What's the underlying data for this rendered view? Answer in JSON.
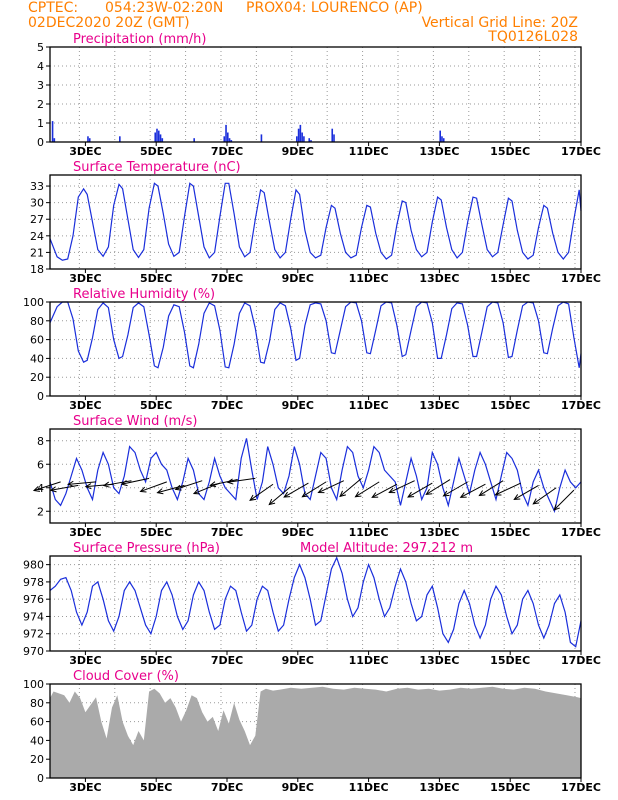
{
  "header": {
    "line1_left": "CPTEC:",
    "line1_coords": "054:23W-02:20N",
    "line1_station": "PROX04: LOURENCO (AP)",
    "line2_left": "02DEC2020 20Z (GMT)",
    "line2_right": "Vertical Grid Line: 20Z",
    "line3_right": "TQ0126L028"
  },
  "colors": {
    "header": "#ff7f00",
    "title": "#e8008c",
    "series": "#1a2edb",
    "cloud": "#aaaaaa",
    "grid": "#9a9a9a"
  },
  "x_axis": {
    "start_day": 2.0,
    "end_day": 17.0,
    "date_labels": [
      "3DEC",
      "5DEC",
      "7DEC",
      "9DEC",
      "11DEC",
      "13DEC",
      "15DEC",
      "17DEC"
    ],
    "label_days": [
      3,
      5,
      7,
      9,
      11,
      13,
      15,
      17
    ],
    "grid_hour": "20Z"
  },
  "chart_data": [
    {
      "id": "precip",
      "type": "bar",
      "title": "Precipitation (mm/h)",
      "ylim": [
        0,
        5
      ],
      "yticks": [
        0,
        1,
        2,
        3,
        4,
        5
      ],
      "grid": true,
      "day": [
        2.05,
        2.1,
        3.05,
        3.1,
        3.95,
        4.95,
        5.0,
        5.05,
        5.1,
        5.15,
        6.05,
        6.9,
        6.95,
        7.0,
        7.05,
        7.1,
        7.95,
        8.95,
        9.0,
        9.05,
        9.1,
        9.15,
        9.3,
        9.35,
        9.95,
        10.0,
        13.0,
        13.05,
        13.1
      ],
      "values": [
        1.1,
        0.2,
        0.3,
        0.2,
        0.3,
        0.5,
        0.7,
        0.6,
        0.4,
        0.2,
        0.2,
        0.3,
        0.9,
        0.5,
        0.2,
        0.1,
        0.4,
        0.3,
        0.7,
        0.9,
        0.5,
        0.3,
        0.2,
        0.1,
        0.7,
        0.4,
        0.6,
        0.3,
        0.2
      ]
    },
    {
      "id": "temp",
      "type": "line",
      "title": "Surface Temperature (nC)",
      "ylim": [
        18,
        35
      ],
      "yticks": [
        18,
        21,
        24,
        27,
        30,
        33
      ],
      "grid": true,
      "day": [
        2.0,
        2.2,
        2.35,
        2.5,
        2.65,
        2.8,
        2.95,
        3.05,
        3.2,
        3.35,
        3.5,
        3.65,
        3.8,
        3.95,
        4.05,
        4.2,
        4.35,
        4.5,
        4.65,
        4.8,
        4.95,
        5.05,
        5.2,
        5.35,
        5.5,
        5.65,
        5.8,
        5.95,
        6.05,
        6.2,
        6.35,
        6.5,
        6.65,
        6.8,
        6.95,
        7.05,
        7.2,
        7.35,
        7.5,
        7.65,
        7.8,
        7.95,
        8.05,
        8.2,
        8.35,
        8.5,
        8.65,
        8.8,
        8.95,
        9.05,
        9.2,
        9.35,
        9.5,
        9.65,
        9.8,
        9.95,
        10.05,
        10.2,
        10.35,
        10.5,
        10.65,
        10.8,
        10.95,
        11.05,
        11.2,
        11.35,
        11.5,
        11.65,
        11.8,
        11.95,
        12.05,
        12.2,
        12.35,
        12.5,
        12.65,
        12.8,
        12.95,
        13.05,
        13.2,
        13.35,
        13.5,
        13.65,
        13.8,
        13.95,
        14.05,
        14.2,
        14.35,
        14.5,
        14.65,
        14.8,
        14.95,
        15.05,
        15.2,
        15.35,
        15.5,
        15.65,
        15.8,
        15.95,
        16.05,
        16.2,
        16.35,
        16.5,
        16.65,
        16.8,
        16.95,
        17.0
      ],
      "values": [
        23.5,
        20.2,
        19.6,
        19.8,
        24.0,
        31.0,
        32.5,
        31.5,
        26.5,
        21.5,
        20.3,
        22.0,
        29.5,
        33.3,
        32.5,
        27.0,
        21.5,
        20.1,
        21.5,
        29.0,
        33.5,
        33.0,
        28.0,
        22.5,
        20.3,
        21.0,
        27.5,
        33.5,
        33.0,
        27.5,
        22.0,
        20.0,
        21.0,
        27.5,
        33.5,
        33.5,
        28.0,
        22.0,
        20.2,
        21.0,
        27.0,
        32.3,
        31.8,
        26.5,
        21.5,
        20.0,
        21.0,
        27.0,
        32.3,
        31.5,
        25.0,
        21.0,
        20.0,
        20.5,
        25.5,
        29.5,
        29.0,
        24.5,
        21.0,
        20.0,
        20.5,
        25.5,
        29.5,
        29.2,
        24.5,
        21.0,
        19.8,
        20.5,
        26.0,
        30.3,
        30.0,
        25.0,
        21.5,
        20.2,
        21.0,
        26.5,
        31.0,
        30.5,
        25.5,
        21.5,
        20.0,
        21.0,
        26.5,
        31.0,
        30.8,
        26.0,
        21.5,
        20.2,
        21.0,
        26.0,
        30.8,
        30.3,
        25.0,
        21.0,
        19.8,
        20.5,
        25.5,
        29.5,
        29.0,
        24.5,
        21.0,
        19.8,
        21.0,
        27.0,
        32.3,
        28.5
      ]
    },
    {
      "id": "rh",
      "type": "line",
      "title": "Relative Humidity (%)",
      "ylim": [
        0,
        100
      ],
      "yticks": [
        0,
        20,
        40,
        60,
        80,
        100
      ],
      "grid": true,
      "day": [
        2.0,
        2.2,
        2.35,
        2.5,
        2.65,
        2.8,
        2.95,
        3.05,
        3.2,
        3.35,
        3.5,
        3.65,
        3.8,
        3.95,
        4.05,
        4.2,
        4.35,
        4.5,
        4.65,
        4.8,
        4.95,
        5.05,
        5.2,
        5.35,
        5.5,
        5.65,
        5.8,
        5.95,
        6.05,
        6.2,
        6.35,
        6.5,
        6.65,
        6.8,
        6.95,
        7.05,
        7.2,
        7.35,
        7.5,
        7.65,
        7.8,
        7.95,
        8.05,
        8.2,
        8.35,
        8.5,
        8.65,
        8.8,
        8.95,
        9.05,
        9.2,
        9.35,
        9.5,
        9.65,
        9.8,
        9.95,
        10.05,
        10.2,
        10.35,
        10.5,
        10.65,
        10.8,
        10.95,
        11.05,
        11.2,
        11.35,
        11.5,
        11.65,
        11.8,
        11.95,
        12.05,
        12.2,
        12.35,
        12.5,
        12.65,
        12.8,
        12.95,
        13.05,
        13.2,
        13.35,
        13.5,
        13.65,
        13.8,
        13.95,
        14.05,
        14.2,
        14.35,
        14.5,
        14.65,
        14.8,
        14.95,
        15.05,
        15.2,
        15.35,
        15.5,
        15.65,
        15.8,
        15.95,
        16.05,
        16.2,
        16.35,
        16.5,
        16.65,
        16.8,
        16.95,
        17.0
      ],
      "values": [
        78,
        95,
        100,
        100,
        82,
        48,
        36,
        38,
        62,
        92,
        99,
        94,
        60,
        40,
        42,
        65,
        94,
        99,
        95,
        65,
        32,
        30,
        52,
        85,
        97,
        95,
        68,
        32,
        30,
        55,
        88,
        99,
        96,
        70,
        31,
        30,
        55,
        88,
        99,
        96,
        72,
        36,
        35,
        58,
        92,
        99,
        96,
        72,
        38,
        40,
        75,
        97,
        99,
        98,
        80,
        46,
        45,
        70,
        95,
        100,
        99,
        80,
        46,
        45,
        70,
        96,
        100,
        99,
        75,
        42,
        44,
        70,
        95,
        100,
        99,
        78,
        40,
        40,
        65,
        93,
        99,
        98,
        75,
        42,
        42,
        68,
        95,
        100,
        99,
        78,
        41,
        42,
        70,
        96,
        100,
        99,
        80,
        46,
        45,
        72,
        96,
        100,
        98,
        62,
        30,
        45
      ]
    },
    {
      "id": "wind",
      "type": "line",
      "title": "Surface Wind (m/s)",
      "ylim": [
        1,
        9
      ],
      "yticks": [
        2,
        4,
        6,
        8
      ],
      "grid": true,
      "day": [
        2.0,
        2.15,
        2.3,
        2.45,
        2.6,
        2.75,
        2.9,
        3.05,
        3.2,
        3.35,
        3.5,
        3.65,
        3.8,
        3.95,
        4.1,
        4.25,
        4.4,
        4.55,
        4.7,
        4.85,
        5.0,
        5.15,
        5.3,
        5.45,
        5.6,
        5.75,
        5.9,
        6.05,
        6.2,
        6.35,
        6.5,
        6.65,
        6.8,
        6.95,
        7.1,
        7.25,
        7.4,
        7.55,
        7.7,
        7.85,
        8.0,
        8.15,
        8.3,
        8.45,
        8.6,
        8.75,
        8.9,
        9.05,
        9.2,
        9.35,
        9.5,
        9.65,
        9.8,
        9.95,
        10.1,
        10.25,
        10.4,
        10.55,
        10.7,
        10.85,
        11.0,
        11.15,
        11.3,
        11.45,
        11.6,
        11.75,
        11.9,
        12.05,
        12.2,
        12.35,
        12.5,
        12.65,
        12.8,
        12.95,
        13.1,
        13.25,
        13.4,
        13.55,
        13.7,
        13.85,
        14.0,
        14.15,
        14.3,
        14.45,
        14.6,
        14.75,
        14.9,
        15.05,
        15.2,
        15.35,
        15.5,
        15.65,
        15.8,
        15.95,
        16.1,
        16.25,
        16.4,
        16.55,
        16.7,
        16.85,
        17.0
      ],
      "values": [
        4.5,
        3.0,
        2.5,
        3.5,
        5.0,
        6.5,
        5.5,
        4.0,
        3.0,
        5.5,
        7.0,
        6.0,
        4.0,
        3.5,
        5.0,
        7.5,
        7.0,
        5.5,
        4.5,
        6.5,
        7.0,
        6.0,
        5.5,
        4.0,
        3.0,
        4.5,
        6.5,
        5.5,
        3.5,
        3.0,
        4.5,
        6.5,
        5.0,
        4.0,
        3.5,
        3.0,
        6.5,
        8.2,
        5.5,
        3.0,
        4.5,
        7.5,
        6.0,
        4.0,
        3.5,
        5.0,
        7.5,
        6.0,
        3.5,
        3.0,
        5.0,
        7.0,
        6.5,
        4.0,
        3.0,
        5.5,
        7.5,
        7.0,
        5.0,
        4.0,
        5.5,
        7.5,
        7.0,
        5.5,
        5.0,
        4.5,
        2.5,
        4.5,
        6.5,
        5.0,
        3.0,
        4.0,
        7.0,
        6.0,
        4.0,
        2.5,
        4.5,
        6.5,
        5.0,
        3.5,
        5.5,
        7.0,
        6.0,
        4.5,
        3.0,
        5.0,
        7.0,
        6.5,
        5.5,
        3.5,
        2.5,
        4.5,
        5.5,
        4.0,
        3.0,
        2.0,
        4.0,
        5.5,
        4.5,
        4.0,
        4.5
      ],
      "arrow_days": [
        2.3,
        2.8,
        3.3,
        3.8,
        4.3,
        4.8,
        5.3,
        5.8,
        6.3,
        6.8,
        7.3,
        7.8,
        8.3,
        8.8,
        9.3,
        9.8,
        10.3,
        10.8,
        11.3,
        11.8,
        12.3,
        12.8,
        13.3,
        13.8,
        14.3,
        14.8,
        15.3,
        15.8,
        16.3,
        16.8
      ],
      "arrow_speed": [
        4.5,
        4.2,
        4.5,
        4.3,
        4.6,
        4.8,
        4.5,
        4.2,
        4.6,
        4.4,
        4.7,
        4.8,
        4.3,
        4.1,
        4.4,
        4.5,
        4.6,
        4.8,
        4.5,
        4.3,
        4.6,
        4.4,
        4.7,
        4.5,
        4.3,
        4.6,
        4.4,
        4.2,
        4.0,
        3.8
      ],
      "arrow_dir_deg": [
        72,
        80,
        85,
        85,
        80,
        78,
        70,
        75,
        72,
        68,
        78,
        82,
        55,
        50,
        60,
        58,
        65,
        50,
        58,
        62,
        65,
        60,
        58,
        60,
        62,
        58,
        65,
        60,
        55,
        45
      ]
    },
    {
      "id": "pres",
      "type": "line",
      "title": "Surface Pressure (hPa)",
      "subtitle": "Model Altitude: 297.212 m",
      "ylim": [
        970,
        981
      ],
      "yticks": [
        970,
        972,
        974,
        976,
        978,
        980
      ],
      "grid": true,
      "day": [
        2.0,
        2.15,
        2.3,
        2.45,
        2.6,
        2.75,
        2.9,
        3.05,
        3.2,
        3.35,
        3.5,
        3.65,
        3.8,
        3.95,
        4.1,
        4.25,
        4.4,
        4.55,
        4.7,
        4.85,
        5.0,
        5.15,
        5.3,
        5.45,
        5.6,
        5.75,
        5.9,
        6.05,
        6.2,
        6.35,
        6.5,
        6.65,
        6.8,
        6.95,
        7.1,
        7.25,
        7.4,
        7.55,
        7.7,
        7.85,
        8.0,
        8.15,
        8.3,
        8.45,
        8.6,
        8.75,
        8.9,
        9.05,
        9.2,
        9.35,
        9.5,
        9.65,
        9.8,
        9.95,
        10.1,
        10.25,
        10.4,
        10.55,
        10.7,
        10.85,
        11.0,
        11.15,
        11.3,
        11.45,
        11.6,
        11.75,
        11.9,
        12.05,
        12.2,
        12.35,
        12.5,
        12.65,
        12.8,
        12.95,
        13.1,
        13.25,
        13.4,
        13.55,
        13.7,
        13.85,
        14.0,
        14.15,
        14.3,
        14.45,
        14.6,
        14.75,
        14.9,
        15.05,
        15.2,
        15.35,
        15.5,
        15.65,
        15.8,
        15.95,
        16.1,
        16.25,
        16.4,
        16.55,
        16.7,
        16.85,
        17.0
      ],
      "values": [
        977.0,
        977.5,
        978.3,
        978.5,
        977.0,
        974.5,
        973.0,
        974.5,
        977.5,
        978.0,
        976.0,
        973.5,
        972.3,
        974.0,
        977.0,
        978.0,
        977.0,
        975.0,
        973.0,
        972.0,
        974.0,
        977.0,
        978.0,
        976.5,
        974.0,
        972.5,
        973.5,
        976.5,
        978.0,
        977.0,
        974.5,
        972.5,
        973.0,
        976.0,
        977.5,
        977.0,
        974.5,
        972.3,
        973.0,
        976.0,
        977.5,
        977.0,
        974.5,
        972.3,
        973.0,
        976.0,
        978.5,
        980.0,
        978.5,
        976.0,
        973.0,
        973.5,
        976.5,
        979.5,
        980.8,
        979.0,
        976.0,
        974.0,
        975.0,
        978.0,
        980.0,
        978.5,
        976.0,
        974.0,
        975.0,
        977.5,
        979.5,
        978.0,
        975.5,
        973.5,
        974.0,
        976.5,
        977.5,
        975.0,
        972.0,
        971.0,
        972.5,
        975.5,
        977.0,
        975.5,
        973.0,
        971.5,
        973.0,
        976.0,
        977.5,
        976.5,
        974.0,
        972.0,
        973.0,
        976.0,
        977.0,
        975.5,
        973.0,
        971.5,
        973.0,
        975.5,
        976.5,
        974.5,
        971.0,
        970.5,
        973.5
      ]
    },
    {
      "id": "cloud",
      "type": "area",
      "title": "Cloud Cover (%)",
      "ylim": [
        0,
        100
      ],
      "yticks": [
        0,
        20,
        40,
        60,
        80,
        100
      ],
      "grid": true,
      "day": [
        2.0,
        2.1,
        2.25,
        2.4,
        2.55,
        2.7,
        2.85,
        3.0,
        3.15,
        3.3,
        3.45,
        3.6,
        3.75,
        3.9,
        4.05,
        4.2,
        4.35,
        4.5,
        4.65,
        4.8,
        4.95,
        5.1,
        5.25,
        5.4,
        5.55,
        5.7,
        5.85,
        6.0,
        6.15,
        6.3,
        6.45,
        6.6,
        6.75,
        6.9,
        7.05,
        7.2,
        7.35,
        7.5,
        7.65,
        7.8,
        7.95,
        8.1,
        8.3,
        8.5,
        8.8,
        9.1,
        9.4,
        9.7,
        10.0,
        10.3,
        10.6,
        10.9,
        11.2,
        11.5,
        11.8,
        12.1,
        12.4,
        12.7,
        13.0,
        13.3,
        13.6,
        13.9,
        14.2,
        14.5,
        14.8,
        15.1,
        15.4,
        15.7,
        16.0,
        16.3,
        16.6,
        16.9,
        17.0
      ],
      "values": [
        85,
        92,
        90,
        88,
        80,
        92,
        85,
        70,
        78,
        86,
        60,
        42,
        75,
        88,
        60,
        45,
        35,
        50,
        40,
        92,
        95,
        90,
        80,
        85,
        75,
        60,
        72,
        88,
        85,
        70,
        60,
        65,
        50,
        72,
        58,
        80,
        62,
        50,
        35,
        45,
        92,
        95,
        93,
        94,
        96,
        95,
        96,
        97,
        95,
        94,
        96,
        95,
        94,
        92,
        95,
        96,
        94,
        95,
        93,
        94,
        96,
        95,
        96,
        97,
        95,
        94,
        96,
        95,
        92,
        90,
        88,
        86,
        85
      ]
    }
  ]
}
